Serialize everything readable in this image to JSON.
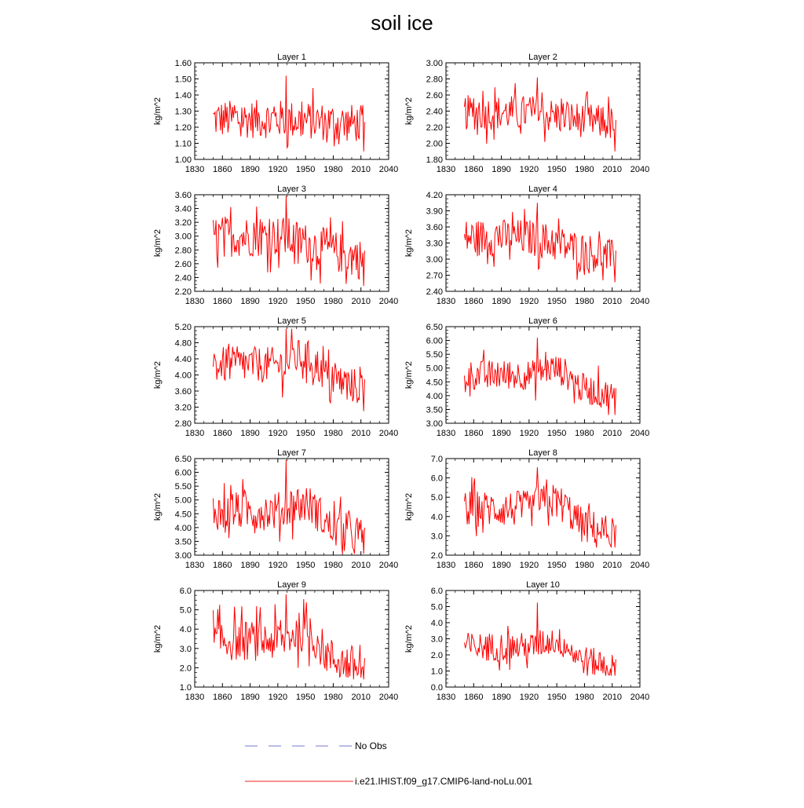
{
  "title": "soil ice",
  "legend": [
    {
      "label": "No Obs",
      "color": "#7777cc",
      "style": "dashed"
    },
    {
      "label": "i.e21.IHIST.f09_g17.CMIP6-land-noLu.001",
      "color": "#ee2222",
      "style": "solid"
    }
  ],
  "chart_data": [
    {
      "type": "line",
      "title": "Layer 1",
      "ylabel": "kg/m^2",
      "xlim": [
        1830,
        2040
      ],
      "ylim": [
        1.0,
        1.6
      ],
      "yticks": [
        "1.00",
        "1.10",
        "1.20",
        "1.30",
        "1.40",
        "1.50",
        "1.60"
      ],
      "xticks": [
        "1830",
        "1860",
        "1890",
        "1920",
        "1950",
        "1980",
        "2010",
        "2040"
      ],
      "x_start": 1850,
      "x_end": 2014,
      "baseline": 1.25,
      "amplitude": 0.12,
      "trend": -0.03,
      "min": 1.05,
      "max": 1.52,
      "color": "#ff0000"
    },
    {
      "type": "line",
      "title": "Layer 2",
      "ylabel": "kg/m^2",
      "xlim": [
        1830,
        2040
      ],
      "ylim": [
        1.8,
        3.0
      ],
      "yticks": [
        "1.80",
        "2.00",
        "2.20",
        "2.40",
        "2.60",
        "2.80",
        "3.00"
      ],
      "xticks": [
        "1830",
        "1860",
        "1890",
        "1920",
        "1950",
        "1980",
        "2010",
        "2040"
      ],
      "x_start": 1850,
      "x_end": 2014,
      "baseline": 2.38,
      "amplitude": 0.22,
      "trend": -0.15,
      "min": 1.9,
      "max": 2.82,
      "color": "#ff0000"
    },
    {
      "type": "line",
      "title": "Layer 3",
      "ylabel": "kg/m^2",
      "xlim": [
        1830,
        2040
      ],
      "ylim": [
        2.2,
        3.6
      ],
      "yticks": [
        "2.20",
        "2.40",
        "2.60",
        "2.80",
        "3.00",
        "3.20",
        "3.40",
        "3.60"
      ],
      "xticks": [
        "1830",
        "1860",
        "1890",
        "1920",
        "1950",
        "1980",
        "2010",
        "2040"
      ],
      "x_start": 1850,
      "x_end": 2014,
      "baseline": 3.0,
      "amplitude": 0.3,
      "trend": -0.35,
      "min": 2.28,
      "max": 3.58,
      "color": "#ff0000"
    },
    {
      "type": "line",
      "title": "Layer 4",
      "ylabel": "kg/m^2",
      "xlim": [
        1830,
        2040
      ],
      "ylim": [
        2.4,
        4.2
      ],
      "yticks": [
        "2.40",
        "2.70",
        "3.00",
        "3.30",
        "3.60",
        "3.90",
        "4.20"
      ],
      "xticks": [
        "1830",
        "1860",
        "1890",
        "1920",
        "1950",
        "1980",
        "2010",
        "2040"
      ],
      "x_start": 1850,
      "x_end": 2014,
      "baseline": 3.4,
      "amplitude": 0.35,
      "trend": -0.4,
      "min": 2.57,
      "max": 4.05,
      "color": "#ff0000"
    },
    {
      "type": "line",
      "title": "Layer 5",
      "ylabel": "kg/m^2",
      "xlim": [
        1830,
        2040
      ],
      "ylim": [
        2.8,
        5.2
      ],
      "yticks": [
        "2.80",
        "3.20",
        "3.60",
        "4.00",
        "4.40",
        "4.80",
        "5.20"
      ],
      "xticks": [
        "1830",
        "1860",
        "1890",
        "1920",
        "1950",
        "1980",
        "2010",
        "2040"
      ],
      "x_start": 1850,
      "x_end": 2014,
      "baseline": 4.25,
      "amplitude": 0.45,
      "trend": -0.6,
      "min": 3.1,
      "max": 5.15,
      "color": "#ff0000"
    },
    {
      "type": "line",
      "title": "Layer 6",
      "ylabel": "kg/m^2",
      "xlim": [
        1830,
        2040
      ],
      "ylim": [
        3.0,
        6.5
      ],
      "yticks": [
        "3.00",
        "3.50",
        "4.00",
        "4.50",
        "5.00",
        "5.50",
        "6.00",
        "6.50"
      ],
      "xticks": [
        "1830",
        "1860",
        "1890",
        "1920",
        "1950",
        "1980",
        "2010",
        "2040"
      ],
      "x_start": 1850,
      "x_end": 2014,
      "baseline": 4.75,
      "amplitude": 0.55,
      "trend": -0.8,
      "min": 3.3,
      "max": 6.1,
      "color": "#ff0000"
    },
    {
      "type": "line",
      "title": "Layer 7",
      "ylabel": "kg/m^2",
      "xlim": [
        1830,
        2040
      ],
      "ylim": [
        3.0,
        6.5
      ],
      "yticks": [
        "3.00",
        "3.50",
        "4.00",
        "4.50",
        "5.00",
        "5.50",
        "6.00",
        "6.50"
      ],
      "xticks": [
        "1830",
        "1860",
        "1890",
        "1920",
        "1950",
        "1980",
        "2010",
        "2040"
      ],
      "x_start": 1850,
      "x_end": 2014,
      "baseline": 4.6,
      "amplitude": 0.7,
      "trend": -1.0,
      "min": 3.05,
      "max": 6.45,
      "color": "#ff0000"
    },
    {
      "type": "line",
      "title": "Layer 8",
      "ylabel": "kg/m^2",
      "xlim": [
        1830,
        2040
      ],
      "ylim": [
        2.0,
        7.0
      ],
      "yticks": [
        "2.0",
        "3.0",
        "4.0",
        "5.0",
        "6.0",
        "7.0"
      ],
      "xticks": [
        "1830",
        "1860",
        "1890",
        "1920",
        "1950",
        "1980",
        "2010",
        "2040"
      ],
      "x_start": 1850,
      "x_end": 2014,
      "baseline": 4.4,
      "amplitude": 0.95,
      "trend": -1.4,
      "min": 2.4,
      "max": 6.55,
      "color": "#ff0000"
    },
    {
      "type": "line",
      "title": "Layer 9",
      "ylabel": "kg/m^2",
      "xlim": [
        1830,
        2040
      ],
      "ylim": [
        1.0,
        6.0
      ],
      "yticks": [
        "1.0",
        "2.0",
        "3.0",
        "4.0",
        "5.0",
        "6.0"
      ],
      "xticks": [
        "1830",
        "1860",
        "1890",
        "1920",
        "1950",
        "1980",
        "2010",
        "2040"
      ],
      "x_start": 1850,
      "x_end": 2014,
      "baseline": 3.4,
      "amplitude": 1.05,
      "trend": -1.5,
      "min": 1.4,
      "max": 5.8,
      "color": "#ff0000"
    },
    {
      "type": "line",
      "title": "Layer 10",
      "ylabel": "kg/m^2",
      "xlim": [
        1830,
        2040
      ],
      "ylim": [
        0.0,
        6.0
      ],
      "yticks": [
        "0.0",
        "1.0",
        "2.0",
        "3.0",
        "4.0",
        "5.0",
        "6.0"
      ],
      "xticks": [
        "1830",
        "1860",
        "1890",
        "1920",
        "1950",
        "1980",
        "2010",
        "2040"
      ],
      "x_start": 1850,
      "x_end": 2014,
      "baseline": 2.5,
      "amplitude": 0.9,
      "trend": -1.3,
      "min": 0.7,
      "max": 5.25,
      "color": "#ff0000"
    }
  ]
}
